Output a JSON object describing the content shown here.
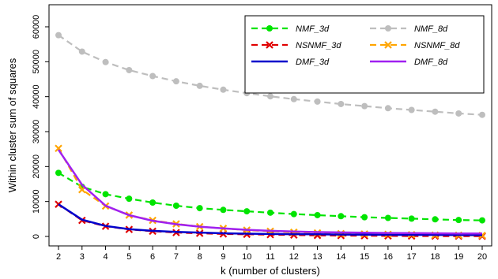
{
  "chart_data": {
    "type": "line",
    "xlabel": "k (number of clusters)",
    "ylabel": "Within cluster sum of squares",
    "x": [
      2,
      3,
      4,
      5,
      6,
      7,
      8,
      9,
      10,
      11,
      12,
      13,
      14,
      15,
      16,
      17,
      18,
      19,
      20
    ],
    "xlim": [
      2,
      20
    ],
    "ylim": [
      0,
      60000
    ],
    "yticks": [
      0,
      10000,
      20000,
      30000,
      40000,
      50000,
      60000
    ],
    "grid": false,
    "legend_position": "top-right",
    "series": [
      {
        "name": "NMF_3d",
        "color": "#00e400",
        "line_style": "dashed",
        "marker": "circle",
        "values": [
          18200,
          14200,
          12100,
          10800,
          9700,
          8800,
          8100,
          7600,
          7200,
          6800,
          6400,
          6100,
          5800,
          5500,
          5300,
          5100,
          4900,
          4700,
          4600
        ]
      },
      {
        "name": "NMF_8d",
        "color": "#bebebe",
        "line_style": "dashed",
        "marker": "circle",
        "values": [
          57600,
          52900,
          49900,
          47600,
          45900,
          44400,
          43100,
          42000,
          41000,
          40100,
          39300,
          38600,
          37900,
          37300,
          36700,
          36200,
          35700,
          35200,
          34800
        ]
      },
      {
        "name": "NSNMF_3d",
        "color": "#e00000",
        "line_style": "dashed",
        "marker": "x",
        "values": [
          9200,
          4600,
          2900,
          2000,
          1500,
          1100,
          900,
          700,
          600,
          500,
          400,
          300,
          250,
          200,
          150,
          120,
          100,
          80,
          60
        ]
      },
      {
        "name": "NSNMF_8d",
        "color": "#ffa500",
        "line_style": "dashed",
        "marker": "x",
        "values": [
          25200,
          13400,
          8700,
          6100,
          4600,
          3600,
          2800,
          2300,
          1800,
          1500,
          1200,
          1000,
          800,
          700,
          600,
          500,
          400,
          350,
          300
        ]
      },
      {
        "name": "DMF_3d",
        "color": "#0000cc",
        "line_style": "solid",
        "marker": "none",
        "values": [
          9200,
          4800,
          3000,
          2100,
          1600,
          1300,
          1100,
          900,
          800,
          700,
          650,
          600,
          550,
          500,
          480,
          460,
          440,
          420,
          400
        ]
      },
      {
        "name": "DMF_8d",
        "color": "#a020f0",
        "line_style": "solid",
        "marker": "none",
        "values": [
          24800,
          14800,
          8800,
          6100,
          4500,
          3500,
          2800,
          2300,
          1900,
          1600,
          1400,
          1250,
          1150,
          1050,
          1000,
          950,
          900,
          860,
          830
        ]
      }
    ]
  }
}
